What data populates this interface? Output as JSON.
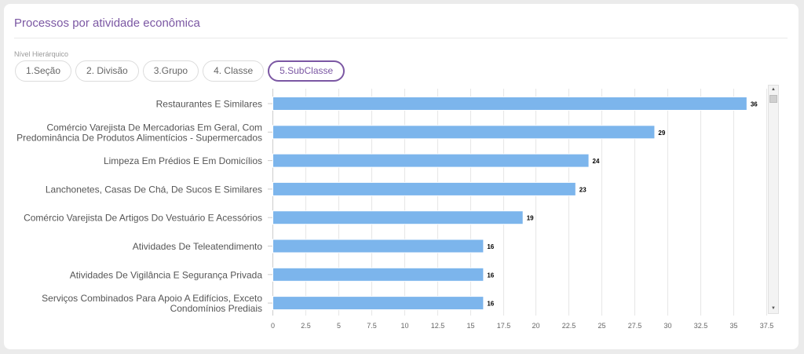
{
  "card": {
    "title": "Processos por atividade econômica",
    "level_label": "Nível Hierárquico",
    "levels": [
      {
        "label": "1.Seção",
        "active": false
      },
      {
        "label": "2. Divisão",
        "active": false
      },
      {
        "label": "3.Grupo",
        "active": false
      },
      {
        "label": "4. Classe",
        "active": false
      },
      {
        "label": "5.SubClasse",
        "active": true
      }
    ]
  },
  "scrollbar": {
    "up_icon": "triangle-up-icon",
    "down_icon": "triangle-down-icon"
  },
  "colors": {
    "bar": "#7cb5ec",
    "accent": "#7b57a3"
  },
  "chart_data": {
    "type": "bar",
    "orientation": "horizontal",
    "title": "",
    "xlabel": "",
    "ylabel": "",
    "categories": [
      [
        "Restaurantes E Similares"
      ],
      [
        "Comércio Varejista De Mercadorias Em Geral, Com",
        "Predominância De Produtos Alimentícios - Supermercados"
      ],
      [
        "Limpeza Em Prédios E Em Domicílios"
      ],
      [
        "Lanchonetes, Casas De Chá, De Sucos E Similares"
      ],
      [
        "Comércio Varejista De Artigos Do Vestuário E Acessórios"
      ],
      [
        "Atividades De Teleatendimento"
      ],
      [
        "Atividades De Vigilância E Segurança Privada"
      ],
      [
        "Serviços Combinados Para Apoio A Edifícios, Exceto",
        "Condomínios Prediais"
      ]
    ],
    "values": [
      36,
      29,
      24,
      23,
      19,
      16,
      16,
      16
    ],
    "value_labels": [
      "36",
      "29",
      "24",
      "23",
      "19",
      "16",
      "16",
      "16"
    ],
    "xlim": [
      0,
      37.5
    ],
    "ticks": [
      "0",
      "2.5",
      "5",
      "7.5",
      "10",
      "12.5",
      "15",
      "17.5",
      "20",
      "22.5",
      "25",
      "27.5",
      "30",
      "32.5",
      "35",
      "37.5"
    ],
    "grid": true,
    "legend": "none"
  }
}
